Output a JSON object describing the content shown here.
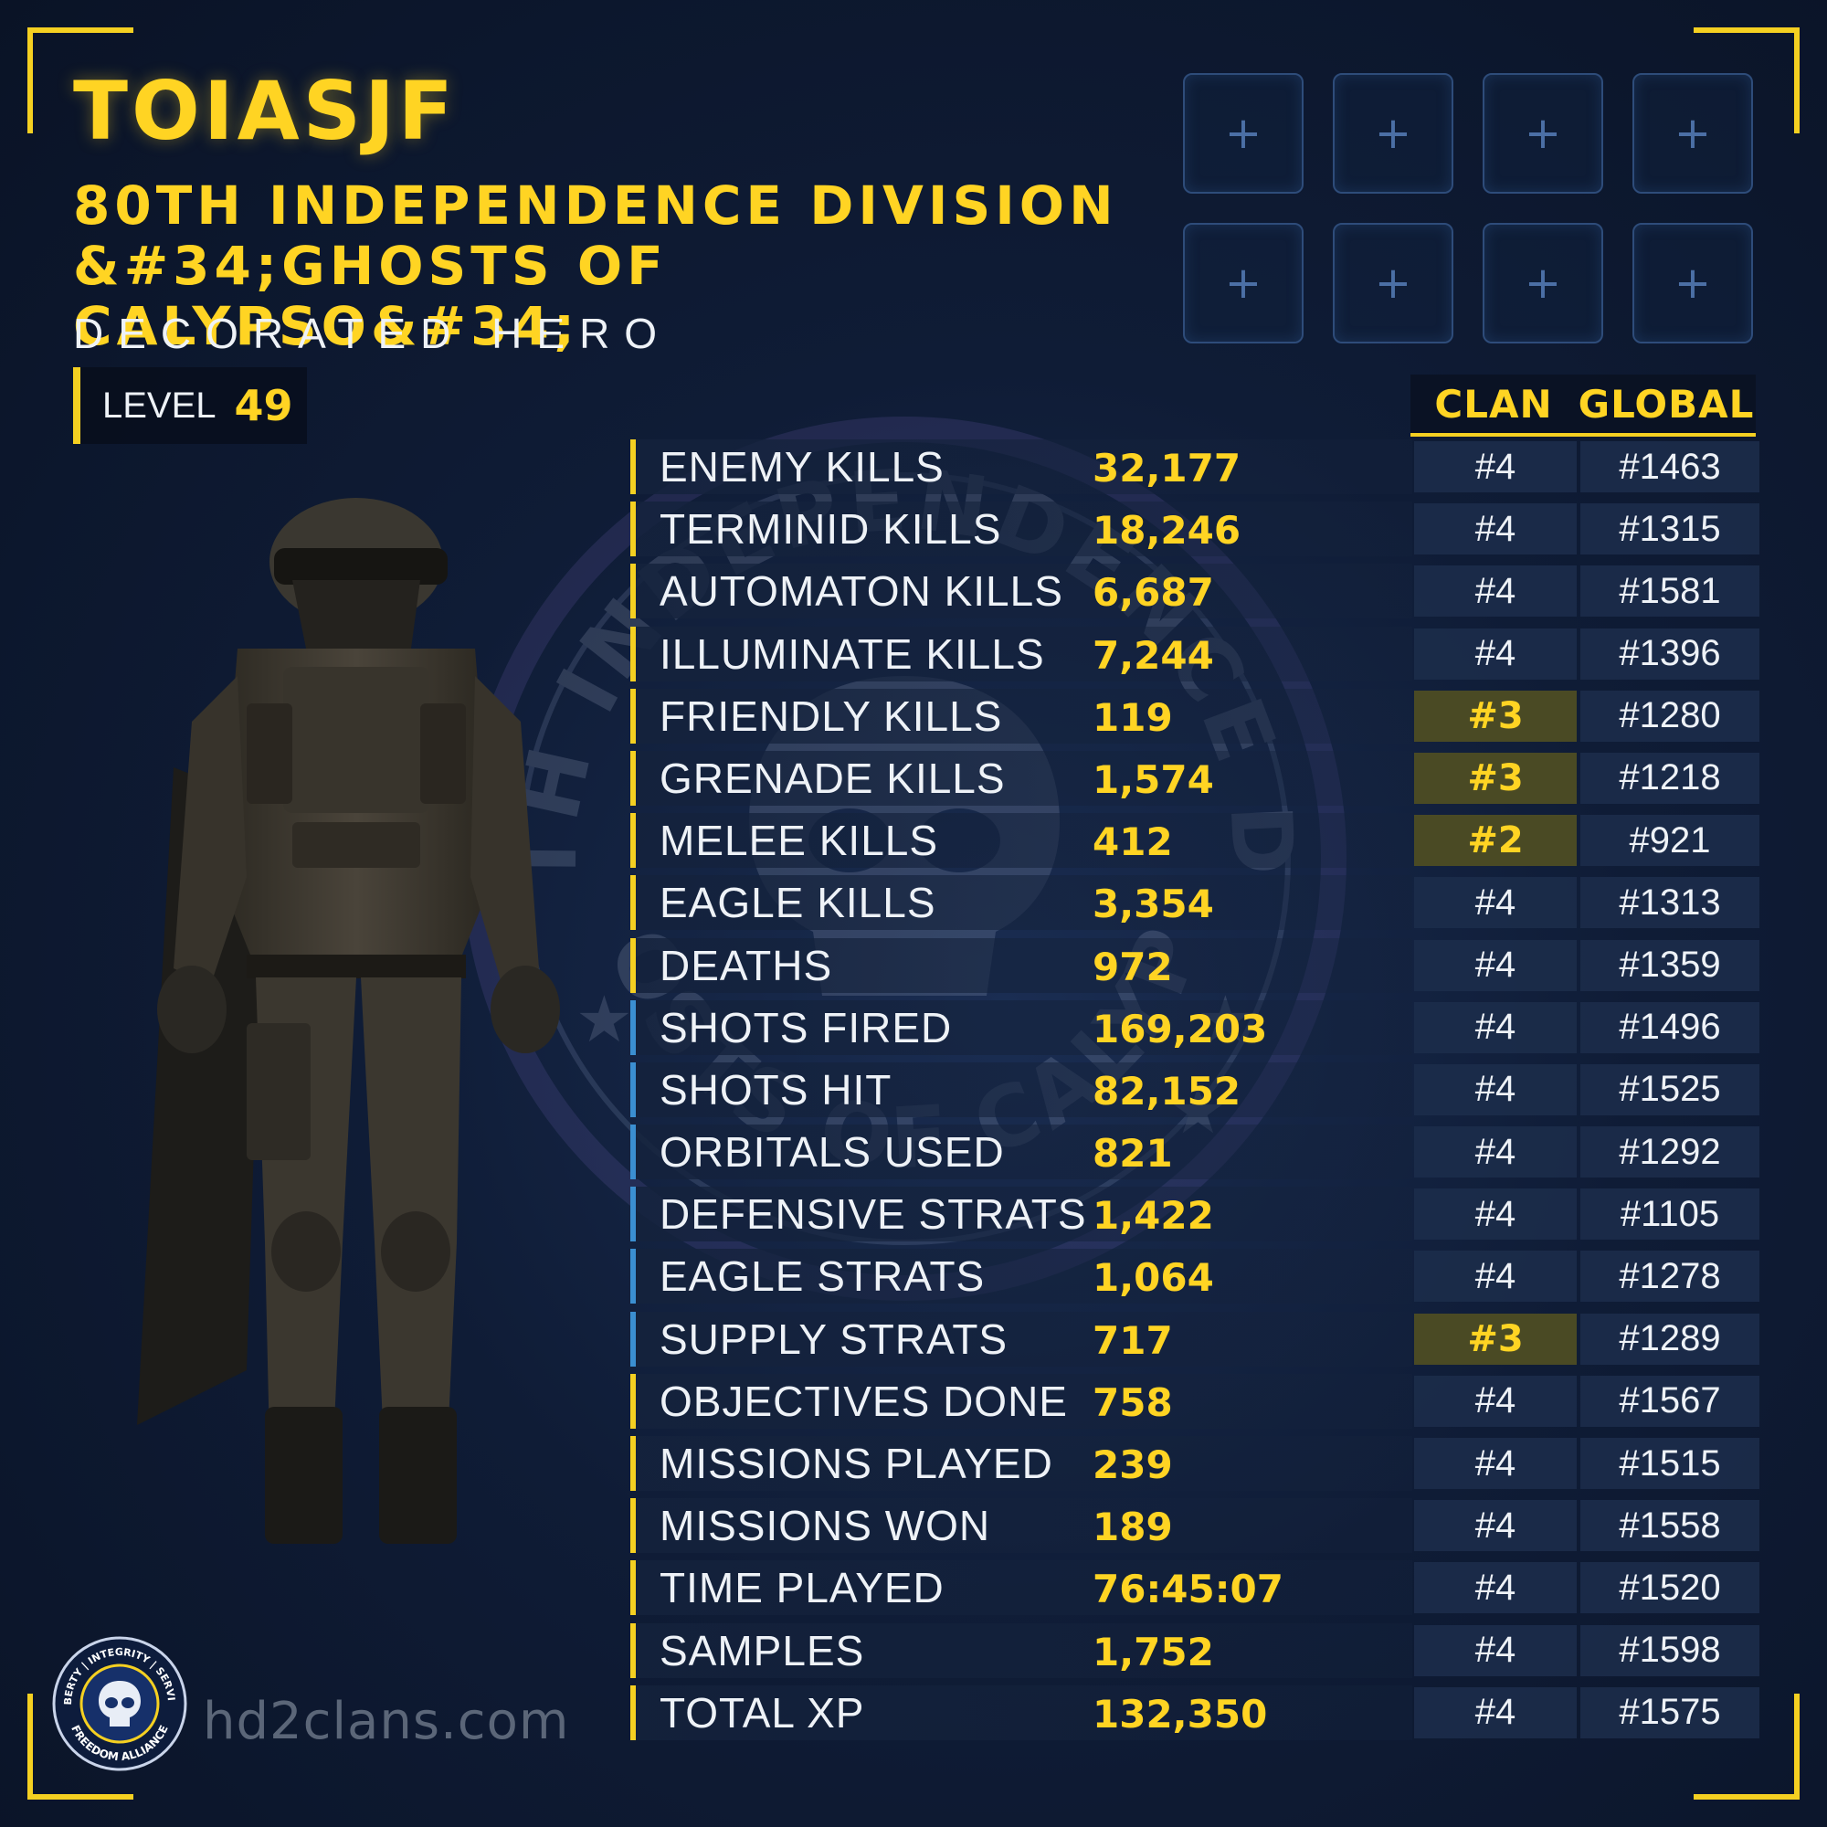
{
  "player": {
    "name": "TOIASJF",
    "clan": "80TH INDEPENDENCE DIVISION &#34;GHOSTS OF CALYPSO&#34;",
    "rank": "DECORATED HERO",
    "level_label": "LEVEL",
    "level": "49"
  },
  "slots": [
    "+",
    "+",
    "+",
    "+",
    "+",
    "+",
    "+",
    "+"
  ],
  "columns": {
    "clan": "CLAN",
    "global": "GLOBAL"
  },
  "stats": [
    {
      "name": "ENEMY KILLS",
      "value": "32,177",
      "clan": "#4",
      "global": "#1463",
      "highlight": false,
      "accent": "yellow"
    },
    {
      "name": "TERMINID KILLS",
      "value": "18,246",
      "clan": "#4",
      "global": "#1315",
      "highlight": false,
      "accent": "yellow"
    },
    {
      "name": "AUTOMATON KILLS",
      "value": "6,687",
      "clan": "#4",
      "global": "#1581",
      "highlight": false,
      "accent": "yellow"
    },
    {
      "name": "ILLUMINATE KILLS",
      "value": "7,244",
      "clan": "#4",
      "global": "#1396",
      "highlight": false,
      "accent": "yellow"
    },
    {
      "name": "FRIENDLY KILLS",
      "value": "119",
      "clan": "#3",
      "global": "#1280",
      "highlight": true,
      "accent": "yellow"
    },
    {
      "name": "GRENADE KILLS",
      "value": "1,574",
      "clan": "#3",
      "global": "#1218",
      "highlight": true,
      "accent": "yellow"
    },
    {
      "name": "MELEE KILLS",
      "value": "412",
      "clan": "#2",
      "global": "#921",
      "highlight": true,
      "accent": "yellow"
    },
    {
      "name": "EAGLE KILLS",
      "value": "3,354",
      "clan": "#4",
      "global": "#1313",
      "highlight": false,
      "accent": "yellow"
    },
    {
      "name": "DEATHS",
      "value": "972",
      "clan": "#4",
      "global": "#1359",
      "highlight": false,
      "accent": "yellow"
    },
    {
      "name": "SHOTS FIRED",
      "value": "169,203",
      "clan": "#4",
      "global": "#1496",
      "highlight": false,
      "accent": "blue"
    },
    {
      "name": "SHOTS HIT",
      "value": "82,152",
      "clan": "#4",
      "global": "#1525",
      "highlight": false,
      "accent": "blue"
    },
    {
      "name": "ORBITALS USED",
      "value": "821",
      "clan": "#4",
      "global": "#1292",
      "highlight": false,
      "accent": "blue"
    },
    {
      "name": "DEFENSIVE STRATS",
      "value": "1,422",
      "clan": "#4",
      "global": "#1105",
      "highlight": false,
      "accent": "blue"
    },
    {
      "name": "EAGLE STRATS",
      "value": "1,064",
      "clan": "#4",
      "global": "#1278",
      "highlight": false,
      "accent": "blue"
    },
    {
      "name": "SUPPLY STRATS",
      "value": "717",
      "clan": "#3",
      "global": "#1289",
      "highlight": true,
      "accent": "blue"
    },
    {
      "name": "OBJECTIVES DONE",
      "value": "758",
      "clan": "#4",
      "global": "#1567",
      "highlight": false,
      "accent": "yellow"
    },
    {
      "name": "MISSIONS PLAYED",
      "value": "239",
      "clan": "#4",
      "global": "#1515",
      "highlight": false,
      "accent": "yellow"
    },
    {
      "name": "MISSIONS WON",
      "value": "189",
      "clan": "#4",
      "global": "#1558",
      "highlight": false,
      "accent": "yellow"
    },
    {
      "name": "TIME PLAYED",
      "value": "76:45:07",
      "clan": "#4",
      "global": "#1520",
      "highlight": false,
      "accent": "yellow"
    },
    {
      "name": "SAMPLES",
      "value": "1,752",
      "clan": "#4",
      "global": "#1598",
      "highlight": false,
      "accent": "yellow"
    },
    {
      "name": "TOTAL XP",
      "value": "132,350",
      "clan": "#4",
      "global": "#1575",
      "highlight": false,
      "accent": "yellow"
    }
  ],
  "emblem": {
    "text_top": "80TH INDEPENDENCE DIV.",
    "text_bottom": "GHOSTS OF CALYPSO"
  },
  "footer": {
    "logo_ring_top": "LIBERTY | INTEGRITY | SERVICE",
    "logo_ring_bottom": "FREEDOM ALLIANCE",
    "site": "hd2clans.com"
  },
  "colors": {
    "accent": "#ffd423",
    "blue_accent": "#3b8fd1",
    "background": "#0f1c36"
  }
}
